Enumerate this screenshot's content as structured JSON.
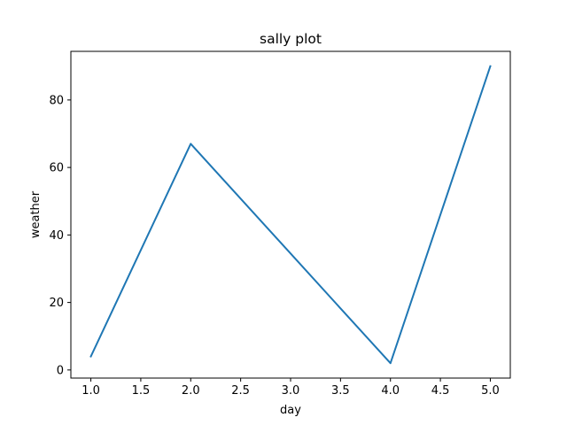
{
  "chart_data": {
    "type": "line",
    "title": "sally plot",
    "xlabel": "day",
    "ylabel": "weather",
    "x": [
      1,
      2,
      3,
      4,
      5
    ],
    "series": [
      {
        "name": "weather",
        "values": [
          4,
          67,
          34.5,
          2,
          90
        ],
        "color": "#1f77b4"
      }
    ],
    "xlim": [
      0.8,
      5.2
    ],
    "ylim": [
      -2.4,
      94.4
    ],
    "xticks": [
      1.0,
      1.5,
      2.0,
      2.5,
      3.0,
      3.5,
      4.0,
      4.5,
      5.0
    ],
    "xtick_labels": [
      "1.0",
      "1.5",
      "2.0",
      "2.5",
      "3.0",
      "3.5",
      "4.0",
      "4.5",
      "5.0"
    ],
    "yticks": [
      0,
      20,
      40,
      60,
      80
    ],
    "ytick_labels": [
      "0",
      "20",
      "40",
      "60",
      "80"
    ],
    "grid": false,
    "legend": "none"
  }
}
